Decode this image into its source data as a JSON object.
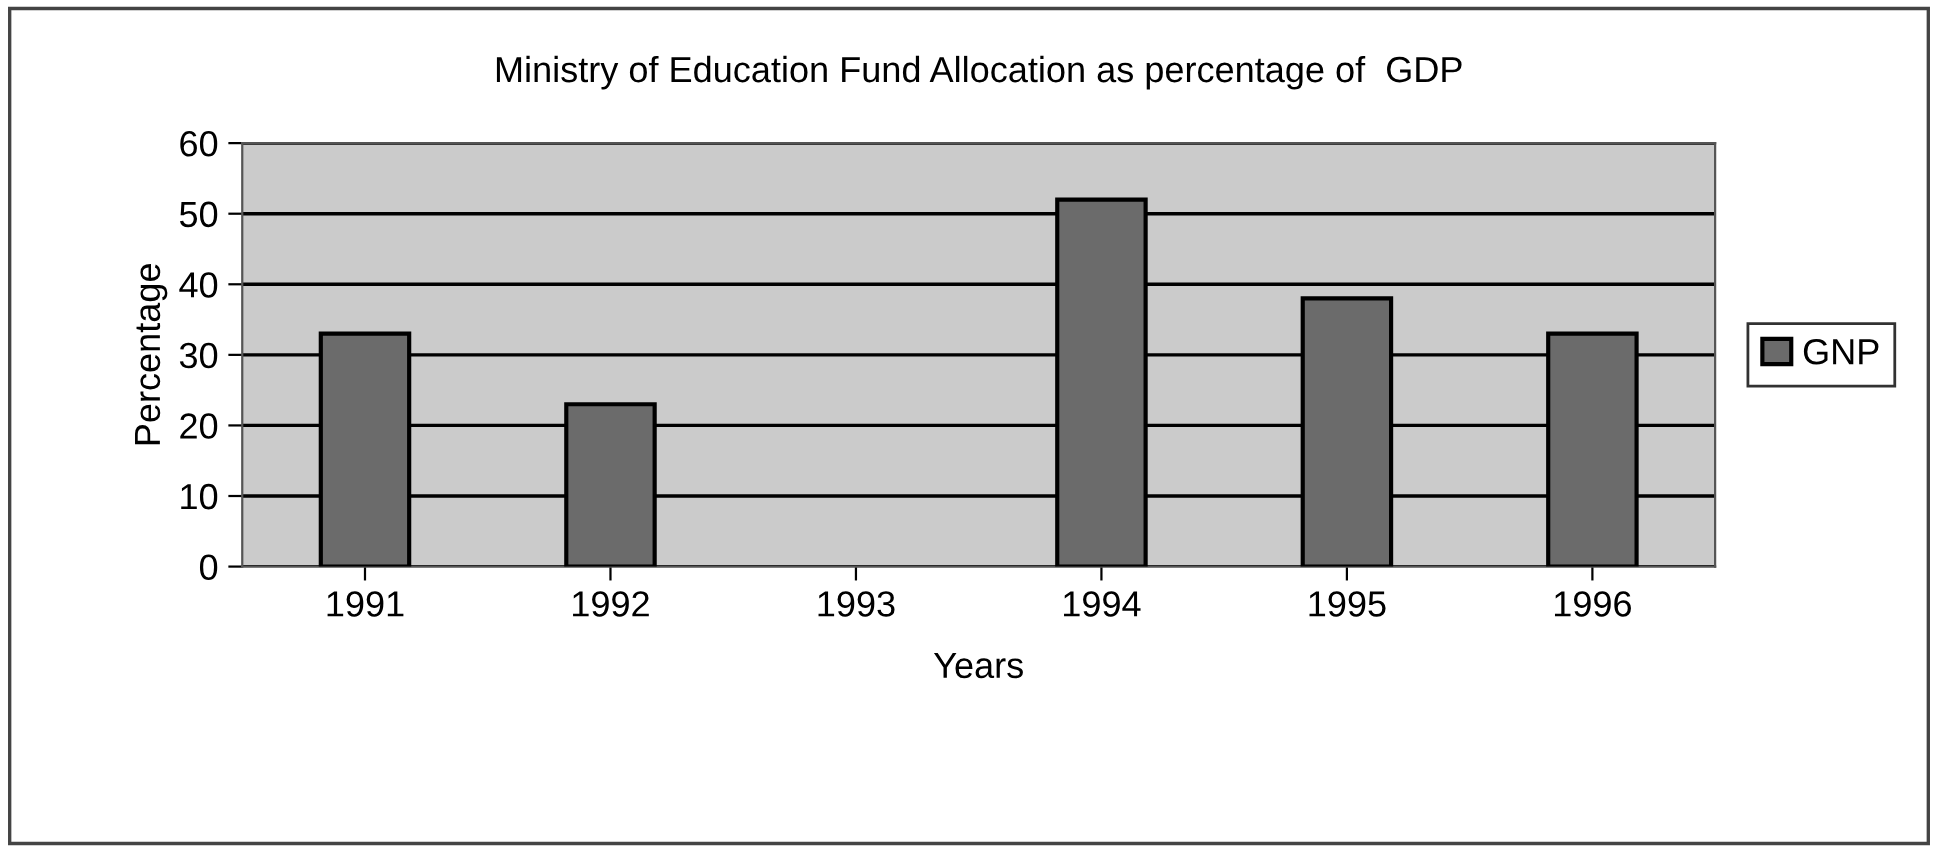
{
  "chart_data": {
    "type": "bar",
    "title": "Ministry of Education Fund Allocation as percentage of  GDP",
    "xlabel": "Years",
    "ylabel": "Percentage",
    "categories": [
      "1991",
      "1992",
      "1993",
      "1994",
      "1995",
      "1996"
    ],
    "series": [
      {
        "name": "GNP",
        "color": "#6b6b6b",
        "values": [
          33,
          23,
          null,
          52,
          38,
          33
        ]
      }
    ],
    "ylim": [
      0,
      60
    ],
    "yticks": [
      0,
      10,
      20,
      30,
      40,
      50,
      60
    ],
    "grid": "y",
    "legend": "right"
  }
}
